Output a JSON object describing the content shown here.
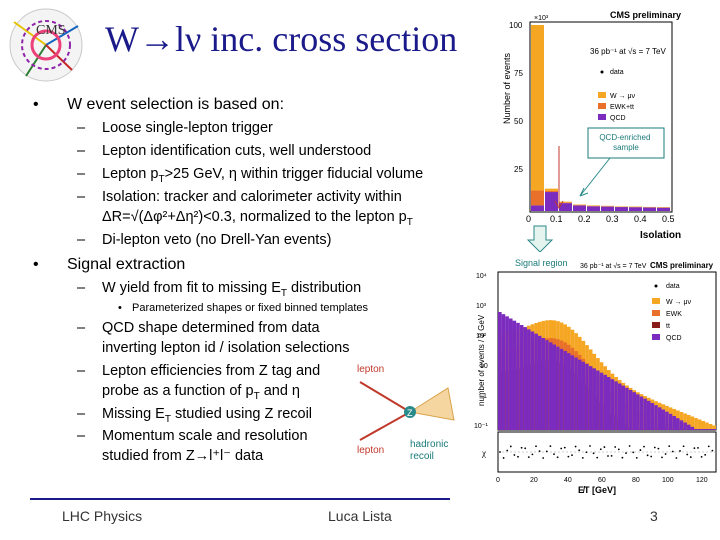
{
  "slide": {
    "title": "W→lν inc. cross section",
    "footer": {
      "left": "LHC Physics",
      "center": "Luca Lista",
      "page": "3"
    }
  },
  "logo": {
    "text": "CMS"
  },
  "bullets": {
    "b1": {
      "marker": "•",
      "text": "W event selection is based on:"
    },
    "b1_subs": [
      {
        "marker": "–",
        "text": "Loose single-lepton trigger"
      },
      {
        "marker": "–",
        "text": "Lepton identification cuts, well understood"
      },
      {
        "marker": "–",
        "text": "Lepton p",
        "sub": "T",
        "tail": ">25 GeV, η within trigger fiducial volume"
      },
      {
        "marker": "–",
        "text": "Isolation: tracker and calorimeter activity within"
      },
      {
        "text": "ΔR=√(Δφ²+Δη²)<0.3, normalized to the lepton p",
        "sub": "T"
      },
      {
        "marker": "–",
        "text": "Di-lepton veto (no Drell-Yan events)"
      }
    ],
    "b2": {
      "marker": "•",
      "text": "Signal extraction"
    },
    "b2_subs": [
      {
        "marker": "–",
        "text": "W yield from fit to missing E",
        "sub": "T",
        "tail": " distribution"
      },
      {
        "marker": "•",
        "text": "Parameterized shapes or fixed binned templates"
      },
      {
        "marker": "–",
        "text": "QCD shape determined from data"
      },
      {
        "text": "inverting lepton id / isolation selections"
      },
      {
        "marker": "–",
        "text": "Lepton efficiencies from Z tag and"
      },
      {
        "text": "probe as a function of p",
        "sub": "T",
        "tail": " and η"
      },
      {
        "marker": "–",
        "text": "Missing E",
        "sub": "T",
        "tail": " studied using Z recoil"
      },
      {
        "marker": "–",
        "text": "Momentum scale and resolution"
      },
      {
        "text": "studied from Z→l⁺l⁻ data"
      }
    ]
  },
  "diagram": {
    "lepton_top": "lepton",
    "lepton_bottom": "lepton",
    "z_label": "Z",
    "recoil_label": "hadronic\nrecoil",
    "colors": {
      "lepton": "#c0392b",
      "z": "#2a8a8a",
      "recoil": "#1a7a7a"
    }
  },
  "plots": {
    "top": {
      "header": "CMS preliminary",
      "lumi": "36 pb⁻¹ at √s = 7 TeV",
      "ylabel": "Number of events",
      "multiplier": "×10³",
      "xlabel": "Isolation",
      "annotation": "QCD-enriched\nsample",
      "legend": [
        "data",
        "W → μν",
        "EWK+tt",
        "QCD"
      ],
      "colors": {
        "w": "#f5a623",
        "ewk": "#e8702a",
        "qcd": "#7b2cbf",
        "box": "#1a7a7a"
      },
      "chart_data": {
        "type": "bar",
        "title": "CMS preliminary",
        "xlabel": "Isolation",
        "ylabel": "Number of events",
        "x_ticks": [
          "0",
          "0.1",
          "0.2",
          "0.3",
          "0.4",
          "0.5"
        ],
        "y_ticks": [
          "25",
          "50",
          "75",
          "100"
        ],
        "ylim": [
          0,
          100000
        ]
      }
    },
    "bottom": {
      "header": "CMS preliminary",
      "lumi": "36 pb⁻¹ at √s = 7 TeV",
      "region_label": "Signal region",
      "ylabel": "number of events / 2 GeV",
      "xlabel": "E̸T [GeV]",
      "legend": [
        "data",
        "W → μν",
        "EWK",
        "tt",
        "QCD"
      ],
      "y_ticks": [
        "10⁴",
        "10³",
        "10²",
        "10",
        "1",
        "10⁻¹"
      ],
      "x_ticks": [
        "0",
        "20",
        "40",
        "60",
        "80",
        "100",
        "120"
      ],
      "chi_label": "χ"
    }
  }
}
